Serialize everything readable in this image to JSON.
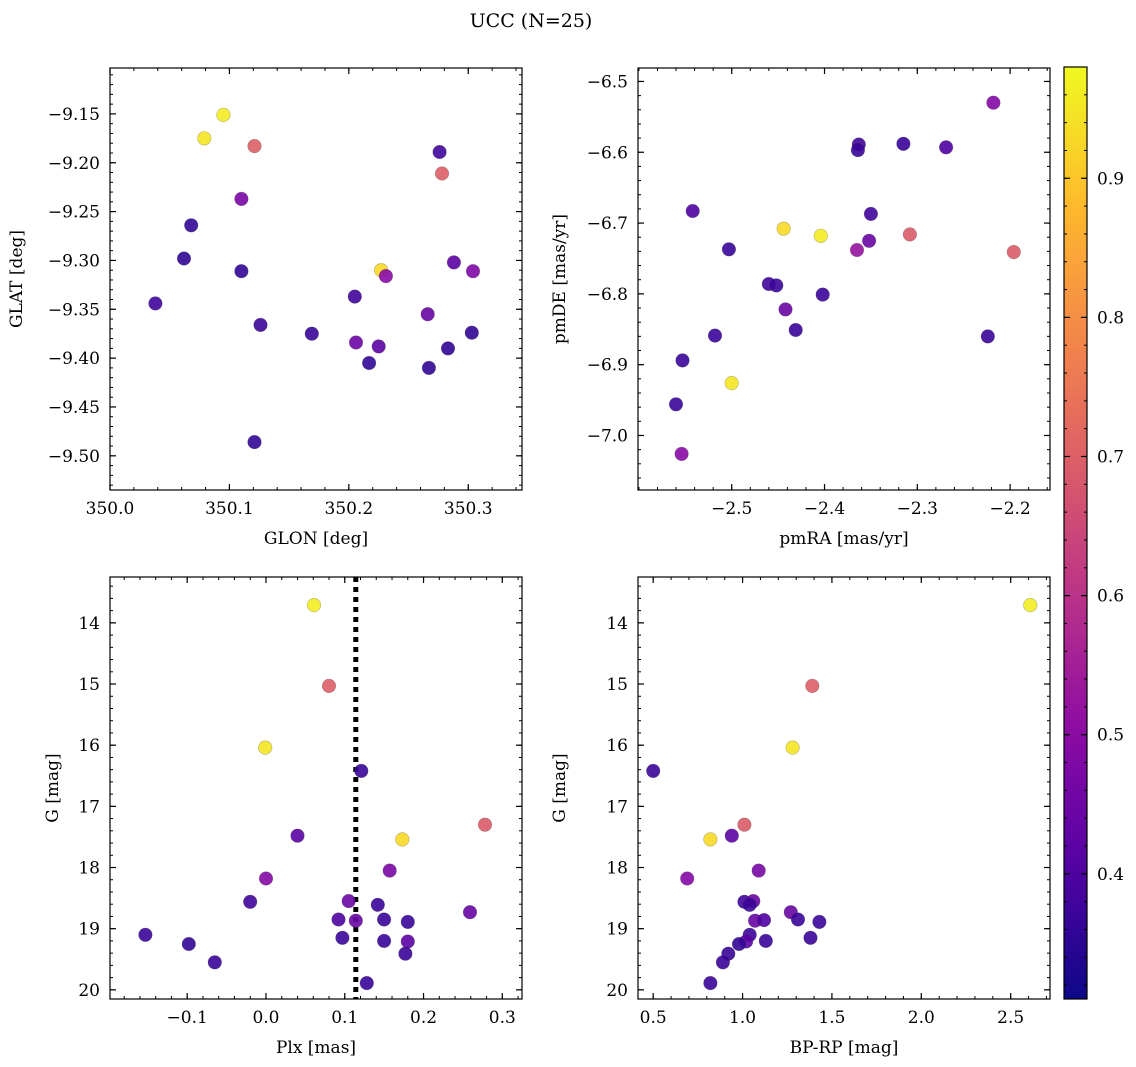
{
  "title": "UCC (N=25)",
  "colorbar": {
    "ticks": [
      0.4,
      0.5,
      0.6,
      0.7,
      0.8,
      0.9
    ],
    "tick_labels": [
      "0.4",
      "0.5",
      "0.6",
      "0.7",
      "0.8",
      "0.9"
    ],
    "range": [
      0.31,
      0.98
    ],
    "colormap": "plasma"
  },
  "chart_data": [
    {
      "type": "scatter",
      "xlabel": "GLON [deg]",
      "ylabel": "GLAT [deg]",
      "xlim": [
        350.0,
        350.345
      ],
      "ylim": [
        -9.535,
        -9.103
      ],
      "xticks": [
        350.0,
        350.1,
        350.2,
        350.3
      ],
      "xtick_labels": [
        "350.0",
        "350.1",
        "350.2",
        "350.3"
      ],
      "yticks": [
        -9.15,
        -9.2,
        -9.25,
        -9.3,
        -9.35,
        -9.4,
        -9.45,
        -9.5
      ],
      "ytick_labels": [
        "−9.15",
        "−9.20",
        "−9.25",
        "−9.30",
        "−9.35",
        "−9.40",
        "−9.45",
        "−9.50"
      ],
      "points": [
        {
          "x": 350.095,
          "y": -9.151,
          "c": 0.96
        },
        {
          "x": 350.079,
          "y": -9.175,
          "c": 0.95
        },
        {
          "x": 350.121,
          "y": -9.183,
          "c": 0.7
        },
        {
          "x": 350.276,
          "y": -9.189,
          "c": 0.38
        },
        {
          "x": 350.278,
          "y": -9.211,
          "c": 0.7
        },
        {
          "x": 350.11,
          "y": -9.237,
          "c": 0.47
        },
        {
          "x": 350.068,
          "y": -9.264,
          "c": 0.36
        },
        {
          "x": 350.062,
          "y": -9.298,
          "c": 0.36
        },
        {
          "x": 350.288,
          "y": -9.302,
          "c": 0.42
        },
        {
          "x": 350.227,
          "y": -9.31,
          "c": 0.93
        },
        {
          "x": 350.11,
          "y": -9.311,
          "c": 0.36
        },
        {
          "x": 350.304,
          "y": -9.311,
          "c": 0.48
        },
        {
          "x": 350.231,
          "y": -9.316,
          "c": 0.5
        },
        {
          "x": 350.205,
          "y": -9.337,
          "c": 0.38
        },
        {
          "x": 350.038,
          "y": -9.344,
          "c": 0.38
        },
        {
          "x": 350.266,
          "y": -9.355,
          "c": 0.44
        },
        {
          "x": 350.126,
          "y": -9.366,
          "c": 0.37
        },
        {
          "x": 350.169,
          "y": -9.375,
          "c": 0.37
        },
        {
          "x": 350.303,
          "y": -9.374,
          "c": 0.36
        },
        {
          "x": 350.206,
          "y": -9.384,
          "c": 0.45
        },
        {
          "x": 350.225,
          "y": -9.388,
          "c": 0.42
        },
        {
          "x": 350.283,
          "y": -9.39,
          "c": 0.36
        },
        {
          "x": 350.217,
          "y": -9.405,
          "c": 0.36
        },
        {
          "x": 350.267,
          "y": -9.41,
          "c": 0.36
        },
        {
          "x": 350.121,
          "y": -9.486,
          "c": 0.36
        }
      ]
    },
    {
      "type": "scatter",
      "xlabel": "pmRA [mas/yr]",
      "ylabel": "pmDE [mas/yr]",
      "xlim": [
        -2.601,
        -2.157
      ],
      "ylim": [
        -7.077,
        -6.481
      ],
      "xticks": [
        -2.5,
        -2.4,
        -2.3,
        -2.2
      ],
      "xtick_labels": [
        "−2.5",
        "−2.4",
        "−2.3",
        "−2.2"
      ],
      "yticks": [
        -6.5,
        -6.6,
        -6.7,
        -6.8,
        -6.9,
        -7.0
      ],
      "ytick_labels": [
        "−6.5",
        "−6.6",
        "−6.7",
        "−6.8",
        "−6.9",
        "−7.0"
      ],
      "points": [
        {
          "x": -2.218,
          "y": -6.53,
          "c": 0.49
        },
        {
          "x": -2.363,
          "y": -6.589,
          "c": 0.38
        },
        {
          "x": -2.315,
          "y": -6.588,
          "c": 0.37
        },
        {
          "x": -2.269,
          "y": -6.593,
          "c": 0.4
        },
        {
          "x": -2.364,
          "y": -6.597,
          "c": 0.37
        },
        {
          "x": -2.542,
          "y": -6.683,
          "c": 0.4
        },
        {
          "x": -2.35,
          "y": -6.687,
          "c": 0.38
        },
        {
          "x": -2.444,
          "y": -6.708,
          "c": 0.93
        },
        {
          "x": -2.404,
          "y": -6.718,
          "c": 0.96
        },
        {
          "x": -2.308,
          "y": -6.716,
          "c": 0.69
        },
        {
          "x": -2.352,
          "y": -6.725,
          "c": 0.44
        },
        {
          "x": -2.503,
          "y": -6.737,
          "c": 0.37
        },
        {
          "x": -2.365,
          "y": -6.738,
          "c": 0.52
        },
        {
          "x": -2.196,
          "y": -6.741,
          "c": 0.69
        },
        {
          "x": -2.46,
          "y": -6.786,
          "c": 0.38
        },
        {
          "x": -2.452,
          "y": -6.788,
          "c": 0.37
        },
        {
          "x": -2.402,
          "y": -6.801,
          "c": 0.37
        },
        {
          "x": -2.442,
          "y": -6.822,
          "c": 0.44
        },
        {
          "x": -2.431,
          "y": -6.851,
          "c": 0.37
        },
        {
          "x": -2.518,
          "y": -6.859,
          "c": 0.37
        },
        {
          "x": -2.224,
          "y": -6.86,
          "c": 0.37
        },
        {
          "x": -2.553,
          "y": -6.894,
          "c": 0.37
        },
        {
          "x": -2.5,
          "y": -6.926,
          "c": 0.95
        },
        {
          "x": -2.56,
          "y": -6.956,
          "c": 0.37
        },
        {
          "x": -2.554,
          "y": -7.026,
          "c": 0.5
        }
      ]
    },
    {
      "type": "scatter",
      "xlabel": "Plx [mas]",
      "ylabel": "G [mag]",
      "xlim": [
        -0.198,
        0.325
      ],
      "ylim": [
        20.15,
        13.25
      ],
      "xticks": [
        -0.1,
        0.0,
        0.1,
        0.2,
        0.3
      ],
      "xtick_labels": [
        "−0.1",
        "0.0",
        "0.1",
        "0.2",
        "0.3"
      ],
      "yticks": [
        14,
        15,
        16,
        17,
        18,
        19,
        20
      ],
      "ytick_labels": [
        "14",
        "15",
        "16",
        "17",
        "18",
        "19",
        "20"
      ],
      "vline": {
        "x": 0.114,
        "style": "dotted"
      },
      "points": [
        {
          "x": 0.061,
          "y": 13.71,
          "c": 0.96
        },
        {
          "x": 0.08,
          "y": 15.03,
          "c": 0.7
        },
        {
          "x": -0.001,
          "y": 16.04,
          "c": 0.95
        },
        {
          "x": 0.121,
          "y": 16.42,
          "c": 0.37
        },
        {
          "x": 0.04,
          "y": 17.48,
          "c": 0.42
        },
        {
          "x": 0.173,
          "y": 17.54,
          "c": 0.93
        },
        {
          "x": 0.278,
          "y": 17.3,
          "c": 0.69
        },
        {
          "x": 0.157,
          "y": 18.05,
          "c": 0.47
        },
        {
          "x": 0.0,
          "y": 18.18,
          "c": 0.49
        },
        {
          "x": -0.02,
          "y": 18.56,
          "c": 0.38
        },
        {
          "x": 0.105,
          "y": 18.55,
          "c": 0.44
        },
        {
          "x": 0.142,
          "y": 18.61,
          "c": 0.37
        },
        {
          "x": 0.259,
          "y": 18.73,
          "c": 0.44
        },
        {
          "x": 0.092,
          "y": 18.85,
          "c": 0.4
        },
        {
          "x": 0.114,
          "y": 18.87,
          "c": 0.44
        },
        {
          "x": 0.15,
          "y": 18.85,
          "c": 0.37
        },
        {
          "x": 0.18,
          "y": 18.89,
          "c": 0.37
        },
        {
          "x": -0.153,
          "y": 19.1,
          "c": 0.37
        },
        {
          "x": 0.097,
          "y": 19.15,
          "c": 0.37
        },
        {
          "x": 0.15,
          "y": 19.2,
          "c": 0.37
        },
        {
          "x": 0.18,
          "y": 19.21,
          "c": 0.42
        },
        {
          "x": -0.098,
          "y": 19.25,
          "c": 0.36
        },
        {
          "x": 0.177,
          "y": 19.41,
          "c": 0.37
        },
        {
          "x": -0.065,
          "y": 19.55,
          "c": 0.37
        },
        {
          "x": 0.128,
          "y": 19.89,
          "c": 0.37
        }
      ]
    },
    {
      "type": "scatter",
      "xlabel": "BP-RP [mag]",
      "ylabel": "G [mag]",
      "xlim": [
        0.415,
        2.72
      ],
      "ylim": [
        20.15,
        13.25
      ],
      "xticks": [
        0.5,
        1.0,
        1.5,
        2.0,
        2.5
      ],
      "xtick_labels": [
        "0.5",
        "1.0",
        "1.5",
        "2.0",
        "2.5"
      ],
      "yticks": [
        14,
        15,
        16,
        17,
        18,
        19,
        20
      ],
      "ytick_labels": [
        "14",
        "15",
        "16",
        "17",
        "18",
        "19",
        "20"
      ],
      "points": [
        {
          "x": 2.61,
          "y": 13.71,
          "c": 0.96
        },
        {
          "x": 1.39,
          "y": 15.03,
          "c": 0.7
        },
        {
          "x": 1.28,
          "y": 16.04,
          "c": 0.95
        },
        {
          "x": 0.5,
          "y": 16.42,
          "c": 0.37
        },
        {
          "x": 1.01,
          "y": 17.3,
          "c": 0.69
        },
        {
          "x": 0.94,
          "y": 17.48,
          "c": 0.42
        },
        {
          "x": 0.82,
          "y": 17.54,
          "c": 0.93
        },
        {
          "x": 1.09,
          "y": 18.05,
          "c": 0.47
        },
        {
          "x": 0.69,
          "y": 18.18,
          "c": 0.49
        },
        {
          "x": 1.01,
          "y": 18.56,
          "c": 0.38
        },
        {
          "x": 1.06,
          "y": 18.55,
          "c": 0.44
        },
        {
          "x": 1.04,
          "y": 18.61,
          "c": 0.37
        },
        {
          "x": 1.27,
          "y": 18.73,
          "c": 0.44
        },
        {
          "x": 1.07,
          "y": 18.87,
          "c": 0.44
        },
        {
          "x": 1.12,
          "y": 18.86,
          "c": 0.4
        },
        {
          "x": 1.31,
          "y": 18.85,
          "c": 0.37
        },
        {
          "x": 1.43,
          "y": 18.89,
          "c": 0.37
        },
        {
          "x": 1.04,
          "y": 19.1,
          "c": 0.37
        },
        {
          "x": 1.38,
          "y": 19.15,
          "c": 0.37
        },
        {
          "x": 1.13,
          "y": 19.2,
          "c": 0.37
        },
        {
          "x": 1.02,
          "y": 19.21,
          "c": 0.42
        },
        {
          "x": 0.98,
          "y": 19.25,
          "c": 0.36
        },
        {
          "x": 0.92,
          "y": 19.41,
          "c": 0.37
        },
        {
          "x": 0.89,
          "y": 19.55,
          "c": 0.37
        },
        {
          "x": 0.82,
          "y": 19.89,
          "c": 0.37
        }
      ]
    }
  ]
}
